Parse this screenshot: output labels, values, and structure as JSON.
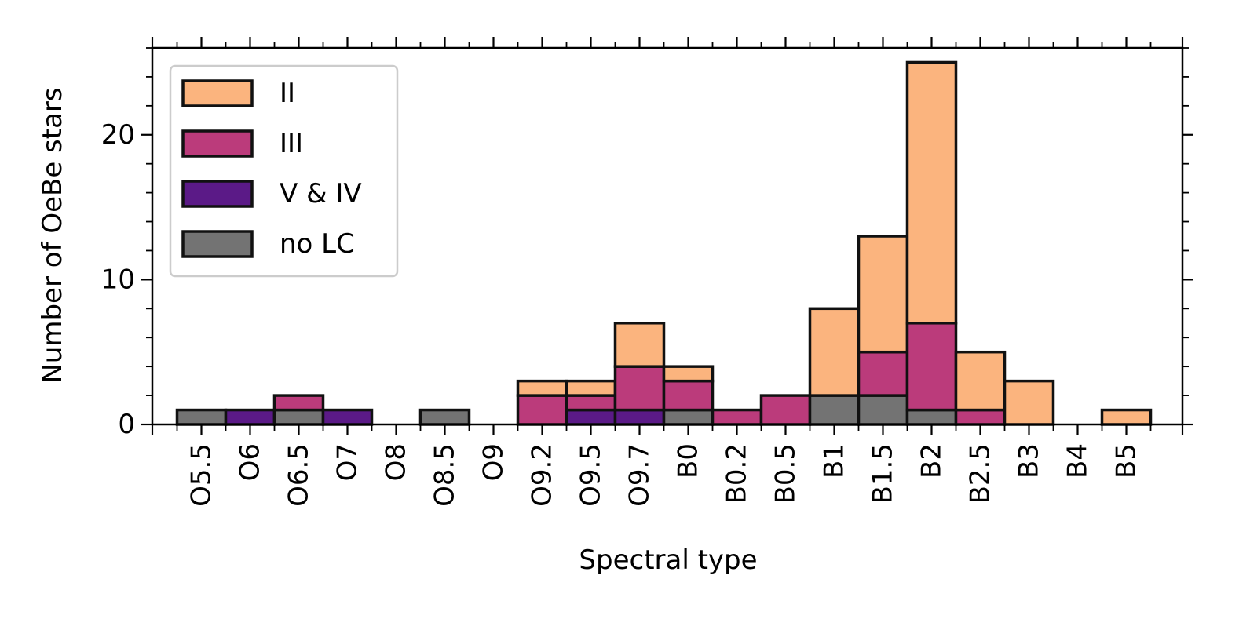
{
  "chart_data": {
    "type": "bar",
    "stacked": true,
    "xlabel": "Spectral type",
    "ylabel": "Number of OeBe stars",
    "ylim": [
      0,
      26
    ],
    "yticks": [
      0,
      10,
      20
    ],
    "yminor_step": 2,
    "grid": false,
    "legend_position": "top-left",
    "categories": [
      "O5.5",
      "O6",
      "O6.5",
      "O7",
      "O8",
      "O8.5",
      "O9",
      "O9.2",
      "O9.5",
      "O9.7",
      "B0",
      "B0.2",
      "B0.5",
      "B1",
      "B1.5",
      "B2",
      "B2.5",
      "B3",
      "B4",
      "B5"
    ],
    "series": [
      {
        "name": "no LC",
        "color": "#737373",
        "values": [
          1,
          0,
          1,
          0,
          0,
          1,
          0,
          0,
          0,
          0,
          1,
          0,
          0,
          2,
          2,
          1,
          0,
          0,
          0,
          0
        ]
      },
      {
        "name": "V & IV",
        "color": "#5b1a87",
        "values": [
          0,
          1,
          0,
          1,
          0,
          0,
          0,
          0,
          1,
          1,
          0,
          0,
          0,
          0,
          0,
          0,
          0,
          0,
          0,
          0
        ]
      },
      {
        "name": "III",
        "color": "#bb3b7b",
        "values": [
          0,
          0,
          1,
          0,
          0,
          0,
          0,
          2,
          1,
          3,
          2,
          1,
          2,
          0,
          3,
          6,
          1,
          0,
          0,
          0
        ]
      },
      {
        "name": "II",
        "color": "#fbb47e",
        "values": [
          0,
          0,
          0,
          0,
          0,
          0,
          0,
          1,
          1,
          3,
          1,
          0,
          0,
          6,
          8,
          18,
          4,
          3,
          0,
          1
        ]
      }
    ],
    "legend_order": [
      "II",
      "III",
      "V & IV",
      "no LC"
    ]
  }
}
